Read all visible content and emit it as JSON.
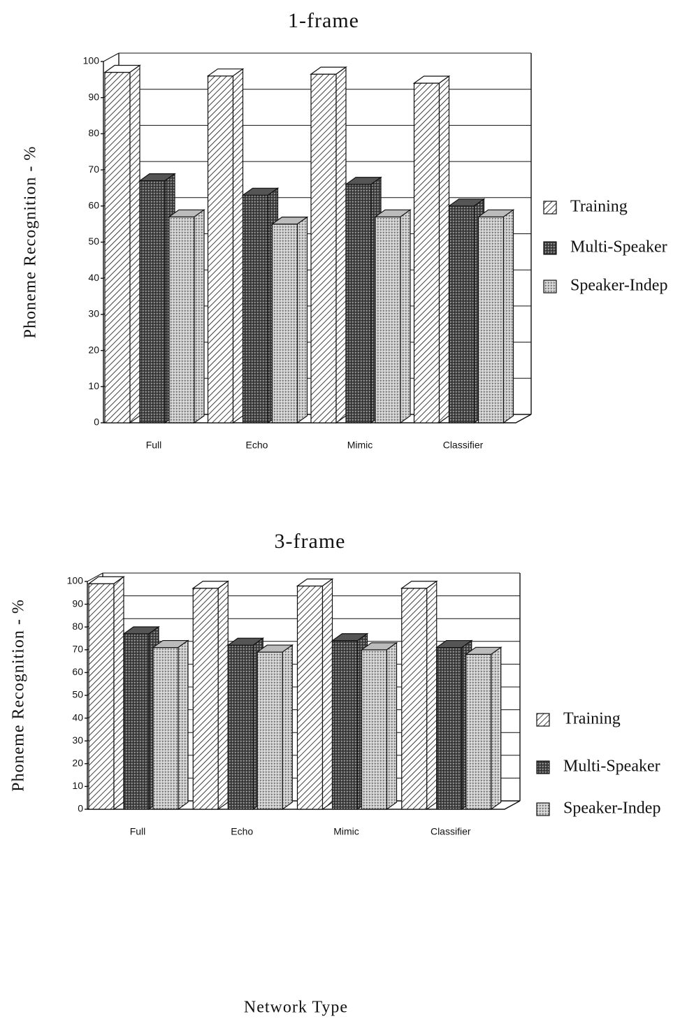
{
  "chart_data": [
    {
      "type": "bar3d",
      "title": "1-frame",
      "y_label": "Phoneme Recognition - %",
      "categories": [
        "Full",
        "Echo",
        "Mimic",
        "Classifier"
      ],
      "series": [
        {
          "name": "Training",
          "color": "#ffffff",
          "pattern": "hatch",
          "values": [
            97,
            96,
            96.5,
            94
          ]
        },
        {
          "name": "Multi-Speaker",
          "color": "#555555",
          "pattern": "dark-dots",
          "values": [
            67,
            63,
            66,
            60
          ]
        },
        {
          "name": "Speaker-Indep",
          "color": "#bbbbbb",
          "pattern": "light-dots",
          "values": [
            57,
            55,
            57,
            57
          ]
        }
      ],
      "ylim": [
        0,
        100
      ],
      "yticks": [
        0,
        10,
        20,
        30,
        40,
        50,
        60,
        70,
        80,
        90,
        100
      ],
      "grid": true
    },
    {
      "type": "bar3d",
      "title": "3-frame",
      "y_label": "Phoneme Recognition - %",
      "x_label": "Network Type",
      "categories": [
        "Full",
        "Echo",
        "Mimic",
        "Classifier"
      ],
      "series": [
        {
          "name": "Training",
          "color": "#ffffff",
          "pattern": "hatch",
          "values": [
            99,
            97,
            98,
            97
          ]
        },
        {
          "name": "Multi-Speaker",
          "color": "#555555",
          "pattern": "dark-dots",
          "values": [
            77,
            72,
            74,
            71
          ]
        },
        {
          "name": "Speaker-Indep",
          "color": "#bbbbbb",
          "pattern": "light-dots",
          "values": [
            71,
            69,
            70,
            68
          ]
        }
      ],
      "ylim": [
        0,
        100
      ],
      "yticks": [
        0,
        10,
        20,
        30,
        40,
        50,
        60,
        70,
        80,
        90,
        100
      ],
      "grid": true
    }
  ]
}
